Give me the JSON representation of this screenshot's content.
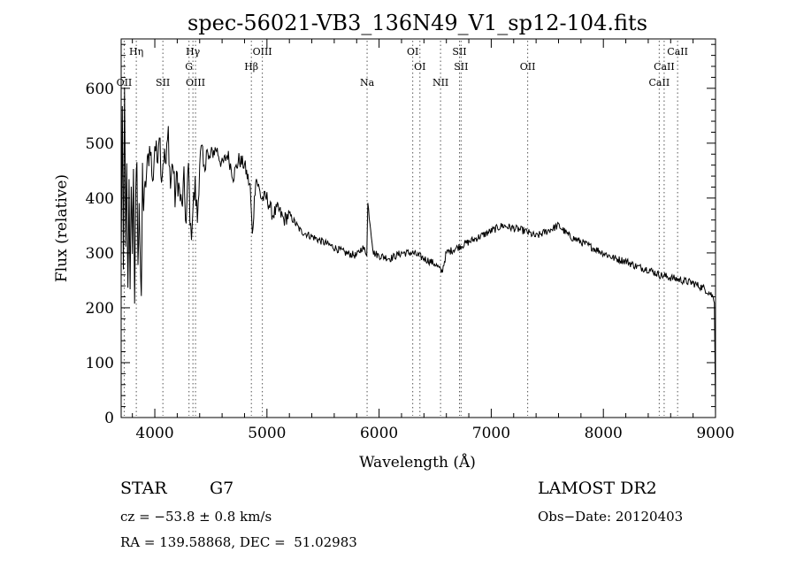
{
  "chart_data": {
    "type": "line",
    "title": "spec-56021-VB3_136N49_V1_sp12-104.fits",
    "xlabel": "Wavelength (Å)",
    "ylabel": "Flux (relative)",
    "xlim": [
      3700,
      9000
    ],
    "ylim": [
      0,
      690
    ],
    "xticks": [
      4000,
      5000,
      6000,
      7000,
      8000,
      9000
    ],
    "yticks": [
      0,
      100,
      200,
      300,
      400,
      500,
      600
    ],
    "grid": false,
    "line_color": "#000000",
    "lines": [
      {
        "label": "OII",
        "x": 3727,
        "row": 3
      },
      {
        "label": "Hη",
        "x": 3835,
        "row": 1
      },
      {
        "label": "SII",
        "x": 4072,
        "row": 3
      },
      {
        "label": "Hγ",
        "x": 4340,
        "row": 1
      },
      {
        "label": "G",
        "x": 4305,
        "row": 2
      },
      {
        "label": "OIII",
        "x": 4363,
        "row": 3
      },
      {
        "label": "OIII",
        "x": 4959,
        "row": 1
      },
      {
        "label": "Hβ",
        "x": 4861,
        "row": 2
      },
      {
        "label": "Na",
        "x": 5893,
        "row": 3
      },
      {
        "label": "OI",
        "x": 6300,
        "row": 1
      },
      {
        "label": "OI",
        "x": 6364,
        "row": 2
      },
      {
        "label": "NII",
        "x": 6548,
        "row": 3
      },
      {
        "label": "SII",
        "x": 6717,
        "row": 1
      },
      {
        "label": "SII",
        "x": 6731,
        "row": 2
      },
      {
        "label": "OII",
        "x": 7325,
        "row": 2
      },
      {
        "label": "CaII",
        "x": 8662,
        "row": 1
      },
      {
        "label": "CaII",
        "x": 8542,
        "row": 2
      },
      {
        "label": "CaII",
        "x": 8498,
        "row": 3
      }
    ],
    "series": [
      {
        "x": [
          3700,
          3710,
          3720,
          3730,
          3740,
          3750,
          3760,
          3770,
          3780,
          3790,
          3800,
          3810,
          3820,
          3830,
          3840,
          3850,
          3860,
          3870,
          3880,
          3890,
          3900,
          3920,
          3940,
          3960,
          3980,
          4000,
          4020,
          4040,
          4060,
          4080,
          4100,
          4120,
          4140,
          4160,
          4180,
          4200,
          4220,
          4240,
          4260,
          4280,
          4300,
          4320,
          4340,
          4360,
          4380,
          4400,
          4420,
          4440,
          4460,
          4480,
          4500,
          4550,
          4600,
          4650,
          4700,
          4750,
          4800,
          4850,
          4870,
          4900,
          4950,
          5000,
          5050,
          5100,
          5150,
          5200,
          5300,
          5400,
          5500,
          5600,
          5700,
          5800,
          5850,
          5890,
          5900,
          5950,
          6000,
          6100,
          6200,
          6300,
          6400,
          6500,
          6560,
          6600,
          6700,
          6800,
          6900,
          7000,
          7100,
          7200,
          7300,
          7400,
          7500,
          7600,
          7700,
          7800,
          7900,
          8000,
          8100,
          8200,
          8300,
          8400,
          8500,
          8600,
          8700,
          8800,
          8900,
          8960,
          8990,
          9000
        ],
        "y": [
          280,
          560,
          260,
          620,
          300,
          450,
          220,
          430,
          250,
          400,
          320,
          440,
          220,
          390,
          470,
          260,
          410,
          300,
          195,
          450,
          380,
          430,
          470,
          500,
          420,
          500,
          470,
          530,
          440,
          480,
          460,
          520,
          420,
          470,
          400,
          440,
          410,
          380,
          430,
          350,
          460,
          330,
          380,
          420,
          360,
          470,
          480,
          440,
          500,
          460,
          480,
          490,
          460,
          480,
          440,
          470,
          460,
          420,
          330,
          440,
          400,
          400,
          370,
          380,
          360,
          370,
          340,
          330,
          320,
          310,
          300,
          295,
          310,
          300,
          390,
          300,
          295,
          290,
          300,
          300,
          290,
          280,
          265,
          300,
          310,
          320,
          330,
          340,
          350,
          345,
          340,
          330,
          340,
          350,
          330,
          320,
          310,
          300,
          290,
          285,
          275,
          270,
          260,
          255,
          250,
          245,
          235,
          225,
          215,
          0
        ]
      }
    ]
  },
  "info": {
    "class_label": "STAR",
    "subclass_label": "G7",
    "survey_label": "LAMOST DR2",
    "cz_text": "cz = −53.8 ± 0.8 km/s",
    "obs_date_text": "Obs−Date: 20120403",
    "coords_text": "RA = 139.58868, DEC =  51.02983"
  }
}
